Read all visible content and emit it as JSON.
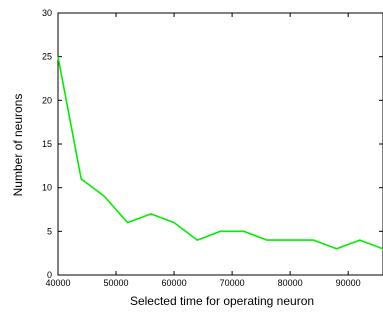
{
  "chart_data": {
    "type": "line",
    "xlabel": "Selected time for operating neuron",
    "ylabel": "Number of neurons",
    "xlim": [
      40000,
      96000
    ],
    "ylim": [
      0,
      30
    ],
    "xticks": [
      40000,
      50000,
      60000,
      70000,
      80000,
      90000
    ],
    "yticks": [
      0,
      5,
      10,
      15,
      20,
      25,
      30
    ],
    "grid": false,
    "series": [
      {
        "color": "#00ee00",
        "x": [
          40000,
          44000,
          48000,
          52000,
          56000,
          60000,
          64000,
          68000,
          72000,
          76000,
          80000,
          84000,
          88000,
          92000,
          96000
        ],
        "y": [
          25,
          11,
          9,
          6,
          7,
          6,
          4,
          5,
          5,
          4,
          4,
          4,
          3,
          4,
          3
        ]
      }
    ]
  }
}
